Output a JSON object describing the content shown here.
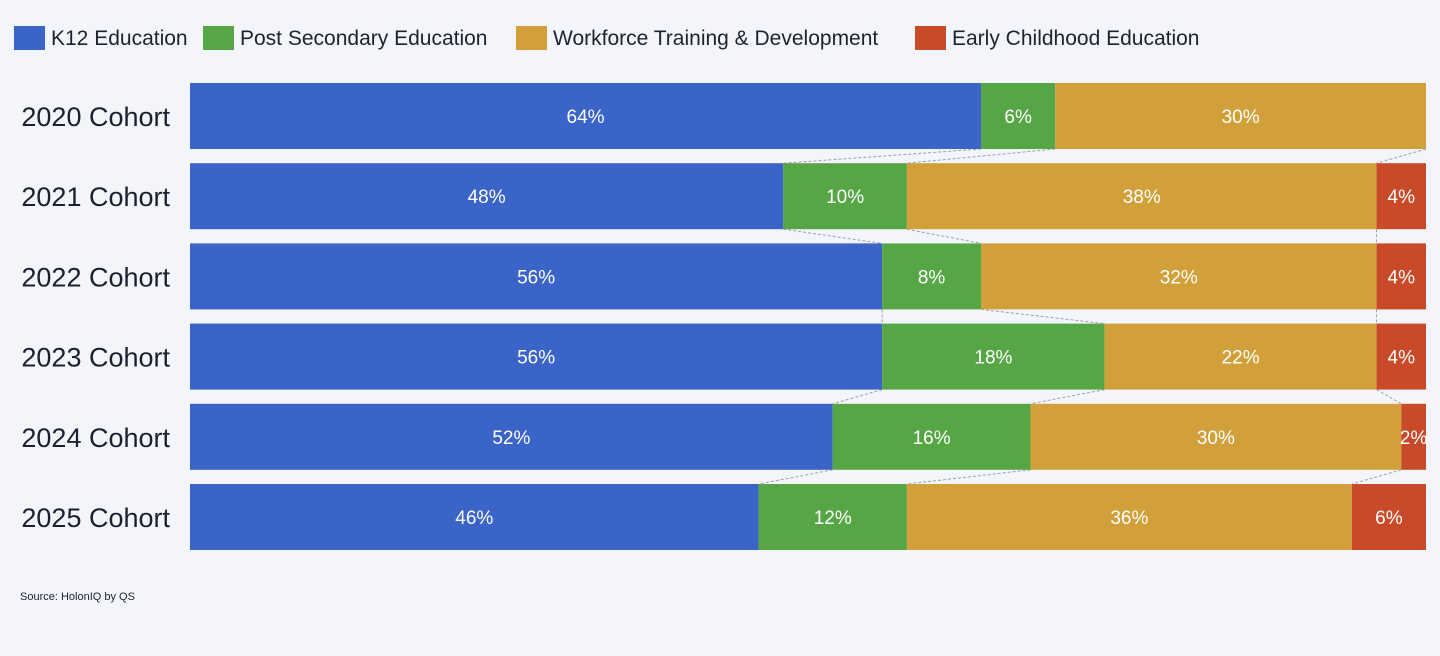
{
  "chart_data": {
    "type": "bar",
    "orientation": "horizontal",
    "stacked": true,
    "percent_stacked": true,
    "categories": [
      "2020 Cohort",
      "2021 Cohort",
      "2022 Cohort",
      "2023 Cohort",
      "2024 Cohort",
      "2025 Cohort"
    ],
    "series": [
      {
        "name": "K12 Education",
        "color": "#3a64c8",
        "values": [
          64,
          48,
          56,
          56,
          52,
          46
        ]
      },
      {
        "name": "Post Secondary Education",
        "color": "#57a646",
        "values": [
          6,
          10,
          8,
          18,
          16,
          12
        ]
      },
      {
        "name": "Workforce Training & Development",
        "color": "#d2a03a",
        "values": [
          30,
          38,
          32,
          22,
          30,
          36
        ]
      },
      {
        "name": "Early Childhood Education",
        "color": "#c94a28",
        "values": [
          0,
          4,
          4,
          4,
          2,
          6
        ]
      }
    ],
    "value_label_suffix": "%",
    "xlim": [
      0,
      100
    ],
    "legend_position": "top-left",
    "connector_lines": true,
    "grid": false
  },
  "source": "Source: HolonIQ by QS"
}
